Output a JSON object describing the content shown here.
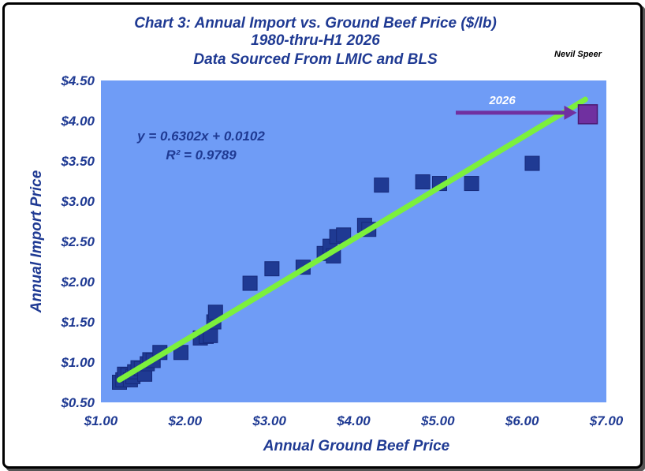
{
  "chart_data": {
    "type": "scatter",
    "title_lines": [
      "Chart 3:  Annual Import vs. Ground Beef Price ($/lb)",
      "1980-thru-H1 2026",
      "Data Sourced From LMIC and BLS"
    ],
    "author": "Nevil Speer",
    "xlabel": "Annual Ground Beef Price",
    "ylabel": "Annual Import Price",
    "xlim": [
      1.0,
      7.0
    ],
    "ylim": [
      0.5,
      4.5
    ],
    "x_ticks": [
      "$1.00",
      "$2.00",
      "$3.00",
      "$4.00",
      "$5.00",
      "$6.00",
      "$7.00"
    ],
    "y_ticks": [
      "$0.50",
      "$1.00",
      "$1.50",
      "$2.00",
      "$2.50",
      "$3.00",
      "$3.50",
      "$4.00",
      "$4.50"
    ],
    "grid": false,
    "colors": {
      "plot_bg": "#6f9cf6",
      "marker": "#1f3a93",
      "highlight": "#7030a0",
      "trendline": "#7cf03c",
      "text": "#1f3a93"
    },
    "trendline": {
      "slope": 0.6302,
      "intercept": 0.0102,
      "equation": "y = 0.6302x + 0.0102",
      "r2": "R² = 0.9789",
      "x_range": [
        1.22,
        6.75
      ]
    },
    "points": [
      {
        "x": 1.22,
        "y": 0.75
      },
      {
        "x": 1.26,
        "y": 0.78
      },
      {
        "x": 1.28,
        "y": 0.85
      },
      {
        "x": 1.32,
        "y": 0.84
      },
      {
        "x": 1.35,
        "y": 0.78
      },
      {
        "x": 1.38,
        "y": 0.82
      },
      {
        "x": 1.4,
        "y": 0.88
      },
      {
        "x": 1.44,
        "y": 0.93
      },
      {
        "x": 1.48,
        "y": 0.92
      },
      {
        "x": 1.52,
        "y": 0.85
      },
      {
        "x": 1.55,
        "y": 0.98
      },
      {
        "x": 1.58,
        "y": 1.03
      },
      {
        "x": 1.62,
        "y": 1.02
      },
      {
        "x": 1.7,
        "y": 1.12
      },
      {
        "x": 1.95,
        "y": 1.12
      },
      {
        "x": 2.18,
        "y": 1.3
      },
      {
        "x": 2.25,
        "y": 1.32
      },
      {
        "x": 2.3,
        "y": 1.33
      },
      {
        "x": 2.34,
        "y": 1.5
      },
      {
        "x": 2.36,
        "y": 1.62
      },
      {
        "x": 2.77,
        "y": 1.98
      },
      {
        "x": 3.03,
        "y": 2.16
      },
      {
        "x": 3.4,
        "y": 2.18
      },
      {
        "x": 3.65,
        "y": 2.35
      },
      {
        "x": 3.72,
        "y": 2.44
      },
      {
        "x": 3.76,
        "y": 2.32
      },
      {
        "x": 3.8,
        "y": 2.56
      },
      {
        "x": 3.88,
        "y": 2.58
      },
      {
        "x": 4.13,
        "y": 2.7
      },
      {
        "x": 4.18,
        "y": 2.65
      },
      {
        "x": 4.33,
        "y": 3.2
      },
      {
        "x": 4.82,
        "y": 3.24
      },
      {
        "x": 5.02,
        "y": 3.22
      },
      {
        "x": 5.4,
        "y": 3.22
      },
      {
        "x": 6.12,
        "y": 3.47
      }
    ],
    "highlight_point": {
      "x": 6.78,
      "y": 4.08,
      "label": "2026"
    }
  }
}
